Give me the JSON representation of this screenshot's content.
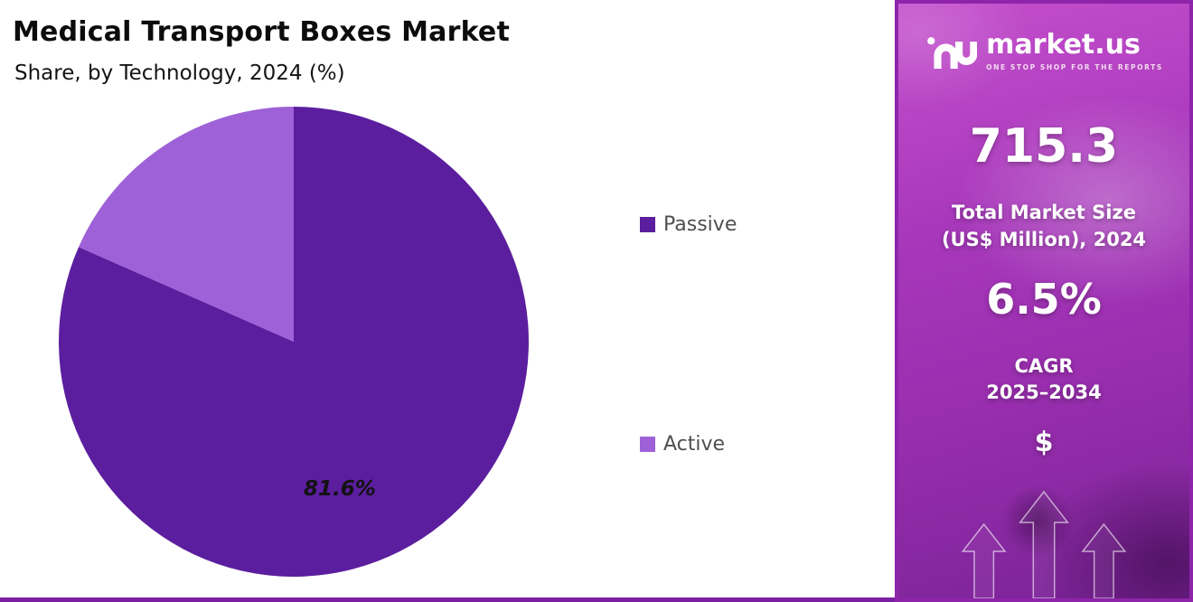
{
  "header": {
    "title": "Medical Transport Boxes Market",
    "subtitle": "Share, by Technology, 2024 (%)"
  },
  "chart_data": {
    "type": "pie",
    "title": "Medical Transport Boxes Market",
    "subtitle": "Share, by Technology, 2024 (%)",
    "categories": [
      "Passive",
      "Active"
    ],
    "values": [
      81.6,
      18.4
    ],
    "colors": [
      "#5B1E9E",
      "#9E61D7"
    ],
    "data_label": "81.6%",
    "start_angle": "top",
    "direction": "clockwise",
    "legend_position": "right"
  },
  "legend": {
    "items": [
      {
        "label": "Passive",
        "color": "#5B1E9E"
      },
      {
        "label": "Active",
        "color": "#9E61D7"
      }
    ]
  },
  "sidebar": {
    "logo_text": "market.us",
    "logo_tagline": "ONE STOP SHOP FOR THE REPORTS",
    "market_size_value": "715.3",
    "market_size_label_line1": "Total Market Size",
    "market_size_label_line2": "(US$ Million), 2024",
    "cagr_value": "6.5%",
    "cagr_label_line1": "CAGR",
    "cagr_label_line2": "2025–2034",
    "currency_symbol": "$"
  },
  "colors": {
    "passive_slice": "#5B1E9E",
    "active_slice": "#9E61D7",
    "panel_border": "#8E24AA",
    "bottom_bar": "#7B1FA2",
    "panel_grad_1": "#C44FCC",
    "panel_grad_2": "#7A2397"
  }
}
